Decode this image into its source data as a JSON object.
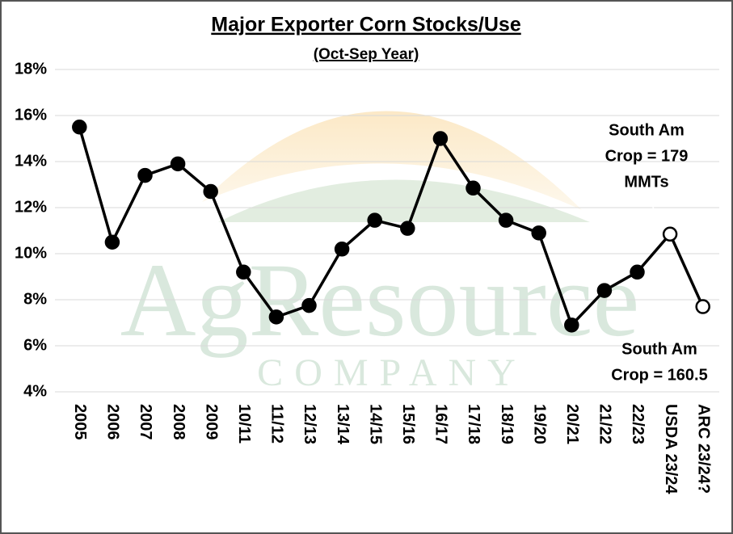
{
  "chart_data": {
    "type": "line",
    "title": "Major Exporter Corn Stocks/Use",
    "subtitle": "(Oct-Sep Year)",
    "categories": [
      "2005",
      "2006",
      "2007",
      "2008",
      "2009",
      "10/11",
      "11/12",
      "12/13",
      "13/14",
      "14/15",
      "15/16",
      "16/17",
      "17/18",
      "18/19",
      "19/20",
      "20/21",
      "21/22",
      "22/23",
      "USDA 23/24",
      "ARC 23/24?"
    ],
    "series": [
      {
        "color": "#000000",
        "values": [
          15.5,
          10.5,
          13.4,
          13.9,
          12.7,
          9.2,
          7.25,
          7.75,
          10.2,
          11.45,
          11.1,
          15.0,
          12.85,
          11.45,
          10.9,
          6.9,
          8.4,
          9.2,
          10.85,
          7.7
        ],
        "markers": [
          "filled",
          "filled",
          "filled",
          "filled",
          "filled",
          "filled",
          "filled",
          "filled",
          "filled",
          "filled",
          "filled",
          "filled",
          "filled",
          "filled",
          "filled",
          "filled",
          "filled",
          "filled",
          "open",
          "open"
        ]
      }
    ],
    "ylim": [
      4,
      18
    ],
    "yticks": [
      {
        "value": 4,
        "label": "4%"
      },
      {
        "value": 6,
        "label": "6%"
      },
      {
        "value": 8,
        "label": "8%"
      },
      {
        "value": 10,
        "label": "10%"
      },
      {
        "value": 12,
        "label": "12%"
      },
      {
        "value": 14,
        "label": "14%"
      },
      {
        "value": 16,
        "label": "16%"
      },
      {
        "value": 18,
        "label": "18%"
      }
    ],
    "grid": true,
    "annotations": [
      {
        "lines": [
          "South Am",
          "Crop = 179",
          "MMTs"
        ]
      },
      {
        "lines": [
          "South Am",
          "Crop = 160.5"
        ]
      }
    ],
    "watermark": {
      "name": "AgResource",
      "sub": "COMPANY"
    }
  }
}
